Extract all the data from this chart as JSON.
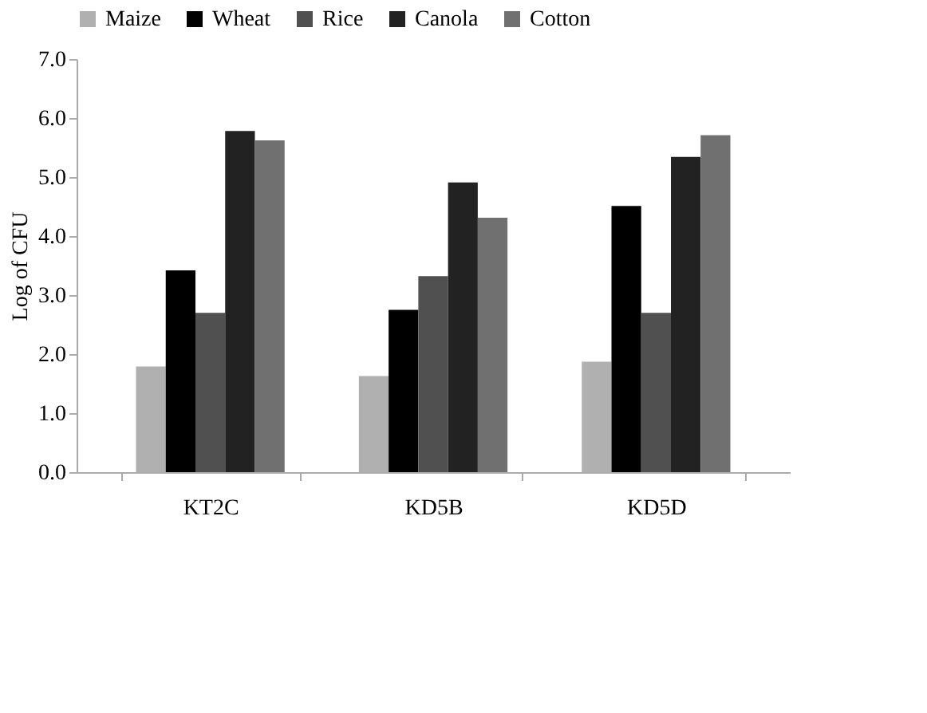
{
  "chart_data": {
    "type": "bar",
    "ylabel": "Log of CFU",
    "categories": [
      "KT2C",
      "KD5B",
      "KD5D"
    ],
    "series": [
      {
        "name": "Maize",
        "color": "#b0b0b0",
        "values": [
          1.79,
          1.63,
          1.87
        ]
      },
      {
        "name": "Wheat",
        "color": "#000000",
        "values": [
          3.42,
          2.75,
          4.51
        ]
      },
      {
        "name": "Rice",
        "color": "#505050",
        "values": [
          2.7,
          3.32,
          2.7
        ]
      },
      {
        "name": "Canola",
        "color": "#222222",
        "values": [
          5.78,
          4.91,
          5.34
        ]
      },
      {
        "name": "Cotton",
        "color": "#707070",
        "values": [
          5.62,
          4.31,
          5.71
        ]
      }
    ],
    "ylim": [
      0,
      7
    ],
    "yticks": [
      {
        "value": 0,
        "label": "0.0"
      },
      {
        "value": 1,
        "label": "1.0"
      },
      {
        "value": 2,
        "label": "2.0"
      },
      {
        "value": 3,
        "label": "3.0"
      },
      {
        "value": 4,
        "label": "4.0"
      },
      {
        "value": 5,
        "label": "5.0"
      },
      {
        "value": 6,
        "label": "6.0"
      },
      {
        "value": 7,
        "label": "7.0"
      }
    ],
    "grid": false,
    "legend": "top"
  }
}
